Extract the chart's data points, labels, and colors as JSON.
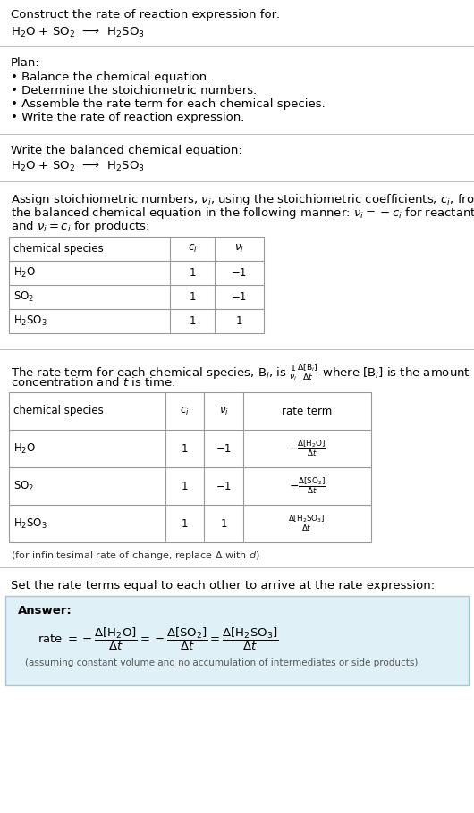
{
  "title_line1": "Construct the rate of reaction expression for:",
  "title_line2": "H$_2$O + SO$_2$  ⟶  H$_2$SO$_3$",
  "plan_header": "Plan:",
  "plan_items": [
    "• Balance the chemical equation.",
    "• Determine the stoichiometric numbers.",
    "• Assemble the rate term for each chemical species.",
    "• Write the rate of reaction expression."
  ],
  "balanced_header": "Write the balanced chemical equation:",
  "balanced_eq": "H$_2$O + SO$_2$  ⟶  H$_2$SO$_3$",
  "stoich_intro_lines": [
    "Assign stoichiometric numbers, $\\nu_i$, using the stoichiometric coefficients, $c_i$, from",
    "the balanced chemical equation in the following manner: $\\nu_i = -c_i$ for reactants",
    "and $\\nu_i = c_i$ for products:"
  ],
  "table1_headers": [
    "chemical species",
    "$c_i$",
    "$\\nu_i$"
  ],
  "table1_rows": [
    [
      "H$_2$O",
      "1",
      "−1"
    ],
    [
      "SO$_2$",
      "1",
      "−1"
    ],
    [
      "H$_2$SO$_3$",
      "1",
      "1"
    ]
  ],
  "rate_intro_lines": [
    "The rate term for each chemical species, B$_i$, is $\\frac{1}{\\nu_i}\\frac{\\Delta[\\mathrm{B}_i]}{\\Delta t}$ where [B$_i$] is the amount",
    "concentration and $t$ is time:"
  ],
  "table2_headers": [
    "chemical species",
    "$c_i$",
    "$\\nu_i$",
    "rate term"
  ],
  "table2_rows": [
    [
      "H$_2$O",
      "1",
      "−1",
      "$-\\frac{\\Delta[\\mathrm{H_2O}]}{\\Delta t}$"
    ],
    [
      "SO$_2$",
      "1",
      "−1",
      "$-\\frac{\\Delta[\\mathrm{SO_2}]}{\\Delta t}$"
    ],
    [
      "H$_2$SO$_3$",
      "1",
      "1",
      "$\\frac{\\Delta[\\mathrm{H_2SO_3}]}{\\Delta t}$"
    ]
  ],
  "infinitesimal_note": "(for infinitesimal rate of change, replace Δ with $d$)",
  "set_equal_text": "Set the rate terms equal to each other to arrive at the rate expression:",
  "answer_label": "Answer:",
  "rate_expression": "rate $= -\\dfrac{\\Delta[\\mathrm{H_2O}]}{\\Delta t} = -\\dfrac{\\Delta[\\mathrm{SO_2}]}{\\Delta t} = \\dfrac{\\Delta[\\mathrm{H_2SO_3}]}{\\Delta t}$",
  "assuming_note": "(assuming constant volume and no accumulation of intermediates or side products)",
  "bg_color": "#ffffff",
  "text_color": "#000000",
  "answer_bg": "#dff0f7",
  "answer_border": "#a0c8dc",
  "sep_color": "#bbbbbb",
  "tbl_color": "#999999"
}
